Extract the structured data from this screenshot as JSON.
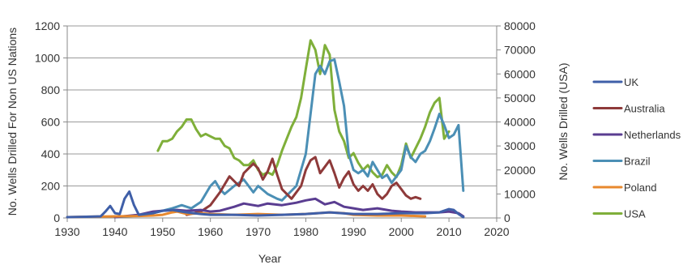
{
  "chart_data": {
    "type": "line",
    "title": "",
    "xlabel": "Year",
    "ylabel_left": "No. Wells Drilled For Non US Nations",
    "ylabel_right": "No. Wells Drilled (USA)",
    "xlim": [
      1930,
      2020
    ],
    "xticks": [
      1930,
      1940,
      1950,
      1960,
      1970,
      1980,
      1990,
      2000,
      2010,
      2020
    ],
    "ylim_left": [
      0,
      1200
    ],
    "yticks_left": [
      0,
      200,
      400,
      600,
      800,
      1000,
      1200
    ],
    "ylim_right": [
      0,
      80000
    ],
    "yticks_right": [
      0,
      10000,
      20000,
      30000,
      40000,
      50000,
      60000,
      70000,
      80000
    ],
    "grid": "horizontal",
    "legend_position": "right",
    "series": [
      {
        "name": "UK",
        "axis": "left",
        "color": "#3f5fa8",
        "points": [
          [
            1930,
            5
          ],
          [
            1935,
            8
          ],
          [
            1937,
            10
          ],
          [
            1938,
            40
          ],
          [
            1939,
            75
          ],
          [
            1940,
            30
          ],
          [
            1941,
            25
          ],
          [
            1942,
            120
          ],
          [
            1943,
            165
          ],
          [
            1944,
            80
          ],
          [
            1945,
            20
          ],
          [
            1948,
            30
          ],
          [
            1950,
            45
          ],
          [
            1952,
            50
          ],
          [
            1955,
            35
          ],
          [
            1958,
            25
          ],
          [
            1960,
            20
          ],
          [
            1965,
            20
          ],
          [
            1970,
            15
          ],
          [
            1975,
            20
          ],
          [
            1980,
            25
          ],
          [
            1985,
            35
          ],
          [
            1990,
            25
          ],
          [
            1995,
            25
          ],
          [
            2000,
            30
          ],
          [
            2005,
            30
          ],
          [
            2008,
            35
          ],
          [
            2010,
            55
          ],
          [
            2011,
            50
          ],
          [
            2012,
            25
          ],
          [
            2013,
            5
          ]
        ]
      },
      {
        "name": "Australia",
        "axis": "left",
        "color": "#8e3a3a",
        "points": [
          [
            1955,
            20
          ],
          [
            1958,
            40
          ],
          [
            1960,
            80
          ],
          [
            1962,
            160
          ],
          [
            1964,
            260
          ],
          [
            1966,
            200
          ],
          [
            1967,
            280
          ],
          [
            1969,
            340
          ],
          [
            1970,
            310
          ],
          [
            1971,
            240
          ],
          [
            1972,
            290
          ],
          [
            1973,
            370
          ],
          [
            1974,
            270
          ],
          [
            1975,
            180
          ],
          [
            1977,
            120
          ],
          [
            1979,
            200
          ],
          [
            1980,
            300
          ],
          [
            1981,
            360
          ],
          [
            1982,
            380
          ],
          [
            1983,
            280
          ],
          [
            1984,
            320
          ],
          [
            1985,
            360
          ],
          [
            1986,
            280
          ],
          [
            1987,
            190
          ],
          [
            1988,
            250
          ],
          [
            1989,
            290
          ],
          [
            1990,
            210
          ],
          [
            1991,
            170
          ],
          [
            1992,
            200
          ],
          [
            1993,
            170
          ],
          [
            1994,
            210
          ],
          [
            1995,
            150
          ],
          [
            1996,
            120
          ],
          [
            1997,
            150
          ],
          [
            1998,
            200
          ],
          [
            1999,
            220
          ],
          [
            2000,
            180
          ],
          [
            2001,
            140
          ],
          [
            2002,
            120
          ],
          [
            2003,
            130
          ],
          [
            2004,
            120
          ]
        ]
      },
      {
        "name": "Netherlands",
        "axis": "left",
        "color": "#5a3d91",
        "points": [
          [
            1940,
            5
          ],
          [
            1945,
            20
          ],
          [
            1948,
            40
          ],
          [
            1950,
            45
          ],
          [
            1953,
            50
          ],
          [
            1955,
            45
          ],
          [
            1958,
            50
          ],
          [
            1960,
            40
          ],
          [
            1962,
            45
          ],
          [
            1965,
            70
          ],
          [
            1967,
            90
          ],
          [
            1970,
            75
          ],
          [
            1972,
            90
          ],
          [
            1975,
            80
          ],
          [
            1978,
            95
          ],
          [
            1980,
            110
          ],
          [
            1982,
            120
          ],
          [
            1984,
            85
          ],
          [
            1986,
            100
          ],
          [
            1988,
            70
          ],
          [
            1990,
            60
          ],
          [
            1992,
            50
          ],
          [
            1995,
            60
          ],
          [
            1998,
            45
          ],
          [
            2000,
            40
          ],
          [
            2003,
            35
          ],
          [
            2005,
            35
          ],
          [
            2008,
            35
          ],
          [
            2010,
            40
          ],
          [
            2012,
            30
          ],
          [
            2013,
            10
          ]
        ]
      },
      {
        "name": "Brazil",
        "axis": "left",
        "color": "#4b8fb5",
        "points": [
          [
            1940,
            5
          ],
          [
            1945,
            15
          ],
          [
            1948,
            30
          ],
          [
            1950,
            45
          ],
          [
            1952,
            60
          ],
          [
            1954,
            80
          ],
          [
            1956,
            60
          ],
          [
            1958,
            100
          ],
          [
            1960,
            200
          ],
          [
            1961,
            230
          ],
          [
            1962,
            180
          ],
          [
            1963,
            150
          ],
          [
            1965,
            200
          ],
          [
            1967,
            240
          ],
          [
            1968,
            200
          ],
          [
            1969,
            160
          ],
          [
            1970,
            200
          ],
          [
            1972,
            150
          ],
          [
            1974,
            120
          ],
          [
            1975,
            110
          ],
          [
            1976,
            140
          ],
          [
            1978,
            200
          ],
          [
            1980,
            400
          ],
          [
            1981,
            650
          ],
          [
            1982,
            900
          ],
          [
            1983,
            950
          ],
          [
            1984,
            900
          ],
          [
            1985,
            980
          ],
          [
            1986,
            990
          ],
          [
            1987,
            850
          ],
          [
            1988,
            700
          ],
          [
            1989,
            400
          ],
          [
            1990,
            300
          ],
          [
            1991,
            280
          ],
          [
            1992,
            300
          ],
          [
            1993,
            260
          ],
          [
            1994,
            350
          ],
          [
            1995,
            300
          ],
          [
            1996,
            250
          ],
          [
            1997,
            270
          ],
          [
            1998,
            220
          ],
          [
            1999,
            260
          ],
          [
            2000,
            300
          ],
          [
            2001,
            450
          ],
          [
            2002,
            380
          ],
          [
            2003,
            350
          ],
          [
            2004,
            400
          ],
          [
            2005,
            420
          ],
          [
            2006,
            480
          ],
          [
            2007,
            560
          ],
          [
            2008,
            650
          ],
          [
            2009,
            580
          ],
          [
            2010,
            500
          ],
          [
            2011,
            520
          ],
          [
            2012,
            580
          ],
          [
            2013,
            170
          ]
        ]
      },
      {
        "name": "Poland",
        "axis": "left",
        "color": "#e8892e",
        "points": [
          [
            1930,
            5
          ],
          [
            1935,
            8
          ],
          [
            1940,
            10
          ],
          [
            1945,
            12
          ],
          [
            1948,
            15
          ],
          [
            1950,
            20
          ],
          [
            1952,
            35
          ],
          [
            1953,
            40
          ],
          [
            1955,
            25
          ],
          [
            1958,
            30
          ],
          [
            1960,
            25
          ],
          [
            1965,
            20
          ],
          [
            1970,
            25
          ],
          [
            1975,
            20
          ],
          [
            1980,
            25
          ],
          [
            1985,
            35
          ],
          [
            1988,
            30
          ],
          [
            1990,
            20
          ],
          [
            1995,
            15
          ],
          [
            2000,
            15
          ],
          [
            2005,
            10
          ]
        ]
      },
      {
        "name": "USA",
        "axis": "right",
        "color": "#7faf3a",
        "points": [
          [
            1949,
            28000
          ],
          [
            1950,
            32000
          ],
          [
            1951,
            32000
          ],
          [
            1952,
            33000
          ],
          [
            1953,
            36000
          ],
          [
            1954,
            38000
          ],
          [
            1955,
            41000
          ],
          [
            1956,
            41000
          ],
          [
            1957,
            37000
          ],
          [
            1958,
            34000
          ],
          [
            1959,
            35000
          ],
          [
            1960,
            34000
          ],
          [
            1961,
            33000
          ],
          [
            1962,
            33000
          ],
          [
            1963,
            30000
          ],
          [
            1964,
            29000
          ],
          [
            1965,
            25000
          ],
          [
            1966,
            24000
          ],
          [
            1967,
            22000
          ],
          [
            1968,
            22000
          ],
          [
            1969,
            24000
          ],
          [
            1970,
            20000
          ],
          [
            1971,
            18000
          ],
          [
            1972,
            19000
          ],
          [
            1973,
            18000
          ],
          [
            1974,
            22000
          ],
          [
            1975,
            28000
          ],
          [
            1976,
            33000
          ],
          [
            1977,
            38000
          ],
          [
            1978,
            42000
          ],
          [
            1979,
            50000
          ],
          [
            1980,
            62000
          ],
          [
            1981,
            74000
          ],
          [
            1982,
            70000
          ],
          [
            1983,
            60000
          ],
          [
            1984,
            72000
          ],
          [
            1985,
            68000
          ],
          [
            1986,
            45000
          ],
          [
            1987,
            36000
          ],
          [
            1988,
            32000
          ],
          [
            1989,
            25000
          ],
          [
            1990,
            27000
          ],
          [
            1991,
            23000
          ],
          [
            1992,
            20000
          ],
          [
            1993,
            22000
          ],
          [
            1994,
            19000
          ],
          [
            1995,
            17000
          ],
          [
            1996,
            18000
          ],
          [
            1997,
            22000
          ],
          [
            1998,
            19000
          ],
          [
            1999,
            17000
          ],
          [
            2000,
            22000
          ],
          [
            2001,
            31000
          ],
          [
            2002,
            25000
          ],
          [
            2003,
            29000
          ],
          [
            2004,
            33000
          ],
          [
            2005,
            38000
          ],
          [
            2006,
            44000
          ],
          [
            2007,
            48000
          ],
          [
            2008,
            50000
          ],
          [
            2009,
            33000
          ],
          [
            2010,
            36000
          ]
        ]
      }
    ]
  }
}
